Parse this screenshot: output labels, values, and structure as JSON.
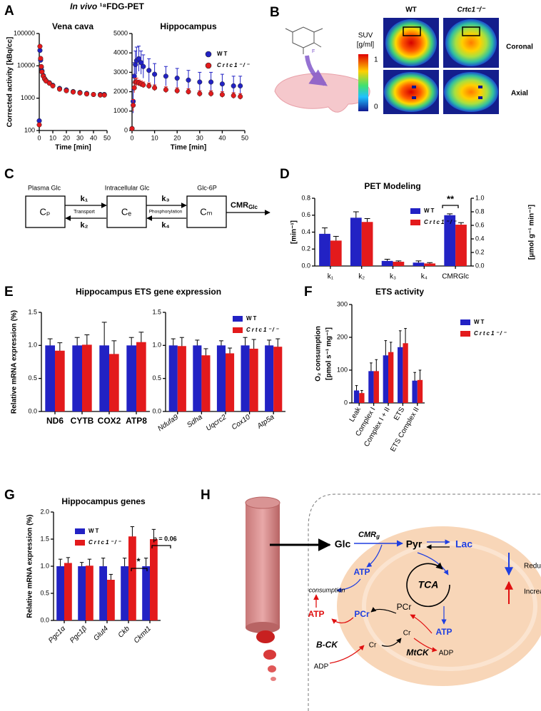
{
  "panels": {
    "A": {
      "letter": "A",
      "title_italic": "In vivo",
      "title": "¹⁸FDG-PET"
    },
    "B": {
      "letter": "B"
    },
    "C": {
      "letter": "C"
    },
    "D": {
      "letter": "D"
    },
    "E": {
      "letter": "E"
    },
    "F": {
      "letter": "F"
    },
    "G": {
      "letter": "G"
    },
    "H": {
      "letter": "H"
    }
  },
  "panel_b": {
    "fluorine": "F",
    "suv": "SUV",
    "suv_unit": "[g/ml]",
    "scale_max": "1",
    "scale_min": "0",
    "wt": "WT",
    "ko": "Crtc1⁻/⁻",
    "coronal": "Coronal",
    "axial": "Axial"
  },
  "panel_c": {
    "plasma": "Plasma Glc",
    "intracellular": "Intracellular Glc",
    "glc6p": "Glc-6P",
    "cp": "Cₚ",
    "ce": "Cₑ",
    "cm": "Cₘ",
    "k1": "k₁",
    "k2": "k₂",
    "k3": "k₃",
    "k4": "k₄",
    "transport": "Transport",
    "phosphorylation": "Phosphorylation",
    "cmr": "CMR",
    "cmr_sub": "Glc"
  },
  "panel_h": {
    "glc": "Glc",
    "cmrg": "CMR",
    "cmrg_sub": "g",
    "pyr": "Pyr",
    "lac": "Lac",
    "atp_blue": "ATP",
    "consumption": "consumption",
    "atp_red": "ATP",
    "pcr_blue": "PCr",
    "pcr": "PCr",
    "bck": "B-CK",
    "tca": "TCA",
    "cr_1": "Cr",
    "cr_2": "Cr",
    "atp_mito": "ATP",
    "adp_1": "ADP",
    "mtck": "MtCK",
    "adp_2": "ADP",
    "reduced": "Reduced",
    "increased": "Increased"
  },
  "chart_data": [
    {
      "type": "scatter",
      "title": "Vena cava",
      "x_label": "Time [min]",
      "y_label": "Corrected activity [kBq/cc]",
      "log_y": true,
      "xlim": [
        0,
        50
      ],
      "xticks": [
        0,
        10,
        20,
        30,
        40,
        50
      ],
      "ylim": [
        100,
        100000
      ],
      "yticks": [
        100,
        1000,
        10000,
        100000
      ],
      "x": [
        0,
        0.5,
        1,
        1.5,
        2,
        3,
        4,
        5,
        7.5,
        10,
        15,
        20,
        25,
        30,
        35,
        40,
        45,
        48
      ],
      "series": [
        {
          "color": "#2222c4",
          "values": [
            200,
            30000,
            15000,
            9000,
            7000,
            5000,
            4000,
            3500,
            3000,
            2500,
            2000,
            1800,
            1600,
            1500,
            1400,
            1300,
            1300,
            1300
          ]
        },
        {
          "color": "#e31a1c",
          "values": [
            150,
            40000,
            17000,
            9500,
            6500,
            4800,
            3900,
            3400,
            2900,
            2400,
            1900,
            1700,
            1550,
            1450,
            1350,
            1300,
            1250,
            1250
          ]
        }
      ]
    },
    {
      "type": "scatter",
      "title": "Hippocampus",
      "x_label": "Time [min]",
      "xlim": [
        0,
        50
      ],
      "xticks": [
        0,
        10,
        20,
        30,
        40,
        50
      ],
      "ylim": [
        0,
        5000
      ],
      "yticks": [
        0,
        1000,
        2000,
        3000,
        4000,
        5000
      ],
      "x": [
        0,
        0.5,
        1,
        1.5,
        2,
        3,
        4,
        5,
        7.5,
        10,
        15,
        20,
        25,
        30,
        35,
        40,
        45,
        48
      ],
      "series": [
        {
          "name": "WT",
          "color": "#2222c4",
          "values": [
            100,
            1500,
            2800,
            3400,
            3600,
            3700,
            3500,
            3300,
            3100,
            2900,
            2800,
            2700,
            2600,
            2500,
            2500,
            2400,
            2300,
            2300
          ],
          "errors": [
            50,
            600,
            700,
            700,
            700,
            650,
            600,
            600,
            600,
            550,
            500,
            500,
            500,
            500,
            500,
            500,
            500,
            500
          ]
        },
        {
          "name": "Crtc1⁻/⁻",
          "color": "#e31a1c",
          "values": [
            100,
            1300,
            2200,
            2500,
            2500,
            2450,
            2400,
            2350,
            2300,
            2200,
            2100,
            2050,
            2000,
            1900,
            1900,
            1850,
            1800,
            1750
          ],
          "errors": [
            50,
            300,
            250,
            200,
            200,
            150,
            150,
            150,
            150,
            150,
            150,
            150,
            150,
            150,
            150,
            150,
            150,
            150
          ]
        }
      ]
    },
    {
      "type": "bar",
      "title": "PET Modeling",
      "y_label": "[min⁻¹]",
      "y2_label": "[μmol g⁻¹ min⁻¹]",
      "categories": [
        "k₁",
        "k₂",
        "k₃",
        "k₄",
        "CMRGlc"
      ],
      "value_axes": [
        "y",
        "y",
        "y",
        "y",
        "y2"
      ],
      "ylim": [
        0,
        0.8
      ],
      "yticks": [
        {
          "value": 0,
          "label": "0.0"
        },
        0.2,
        0.4,
        0.6,
        0.8
      ],
      "y2lim": [
        0,
        1.0
      ],
      "y2ticks": [
        {
          "value": 0,
          "label": "0.0"
        },
        0.2,
        0.4,
        0.6,
        0.8,
        {
          "value": 1,
          "label": "1.0"
        }
      ],
      "annotations": [
        "**"
      ],
      "series": [
        {
          "name": "WT",
          "color": "#2222c4",
          "values": [
            0.38,
            0.57,
            0.06,
            0.04,
            0.75
          ],
          "errors": [
            0.07,
            0.07,
            0.02,
            0.02,
            0.02
          ]
        },
        {
          "name": "Crtc1⁻/⁻",
          "color": "#e31a1c",
          "values": [
            0.3,
            0.52,
            0.05,
            0.03,
            0.61
          ],
          "errors": [
            0.05,
            0.04,
            0.01,
            0.01,
            0.03
          ]
        }
      ]
    },
    {
      "type": "bar",
      "title": "Hippocampus ETS gene expression",
      "y_label": "Relative mRNA expression (%)",
      "categories": [
        "ND6",
        "CYTB",
        "COX2",
        "ATP8"
      ],
      "ylim": [
        0,
        1.5
      ],
      "yticks": [
        {
          "value": 0,
          "label": "0.0"
        },
        0.5,
        {
          "value": 1,
          "label": "1.0"
        },
        1.5
      ],
      "series": [
        {
          "color": "#2222c4",
          "values": [
            1,
            1,
            1,
            1
          ],
          "errors": [
            0.1,
            0.12,
            0.35,
            0.12
          ]
        },
        {
          "color": "#e31a1c",
          "values": [
            0.92,
            1.01,
            0.87,
            1.05
          ],
          "errors": [
            0.12,
            0.15,
            0.2,
            0.15
          ]
        }
      ]
    },
    {
      "type": "bar",
      "categories": [
        "Ndufa9",
        "Sdha",
        "Uqcrc2",
        "Cox10",
        "Atp5a"
      ],
      "ylim": [
        0,
        1.5
      ],
      "yticks": [
        {
          "value": 0,
          "label": "0.0"
        },
        0.5,
        {
          "value": 1,
          "label": "1.0"
        },
        1.5
      ],
      "series": [
        {
          "name": "WT",
          "color": "#2222c4",
          "values": [
            1,
            1,
            1,
            1,
            1
          ],
          "errors": [
            0.1,
            0.08,
            0.07,
            0.12,
            0.08
          ]
        },
        {
          "name": "Crtc1⁻/⁻",
          "color": "#e31a1c",
          "values": [
            0.99,
            0.85,
            0.88,
            0.95,
            0.98
          ],
          "errors": [
            0.13,
            0.1,
            0.08,
            0.14,
            0.12
          ]
        }
      ]
    },
    {
      "type": "bar",
      "title": "ETS activity",
      "y_label": [
        "O₂ consumption",
        "[pmol s⁻¹ mg⁻¹]"
      ],
      "categories": [
        "Leak",
        "Complex I",
        "Complex I + II",
        "ETS",
        "ETS Complex II"
      ],
      "ylim": [
        0,
        300
      ],
      "yticks": [
        0,
        100,
        200,
        300
      ],
      "series": [
        {
          "name": "WT",
          "color": "#2222c4",
          "values": [
            38,
            97,
            145,
            170,
            68
          ],
          "errors": [
            15,
            25,
            45,
            50,
            25
          ]
        },
        {
          "name": "Crtc1⁻/⁻",
          "color": "#e31a1c",
          "values": [
            30,
            97,
            155,
            182,
            70
          ],
          "errors": [
            8,
            35,
            30,
            45,
            30
          ]
        }
      ]
    },
    {
      "type": "bar",
      "title": "Hippocampus genes",
      "y_label": "Relative mRNA expression (%)",
      "categories": [
        "Pgc1α",
        "Pgc1β",
        "Glut4",
        "Ckb",
        "Ckmt1"
      ],
      "ylim": [
        0,
        2
      ],
      "yticks": [
        {
          "value": 0,
          "label": "0.0"
        },
        0.5,
        {
          "value": 1,
          "label": "1.0"
        },
        1.5,
        {
          "value": 2,
          "label": "2.0"
        }
      ],
      "annotations": [
        "*",
        "p = 0.06"
      ],
      "series": [
        {
          "name": "WT",
          "color": "#2222c4",
          "values": [
            1,
            1,
            1,
            1,
            1
          ],
          "errors": [
            0.13,
            0.07,
            0.15,
            0.15,
            0.15
          ]
        },
        {
          "name": "Crtc1⁻/⁻",
          "color": "#e31a1c",
          "values": [
            1.06,
            1.01,
            0.75,
            1.55,
            1.5
          ],
          "errors": [
            0.1,
            0.12,
            0.1,
            0.18,
            0.18
          ]
        }
      ]
    }
  ]
}
